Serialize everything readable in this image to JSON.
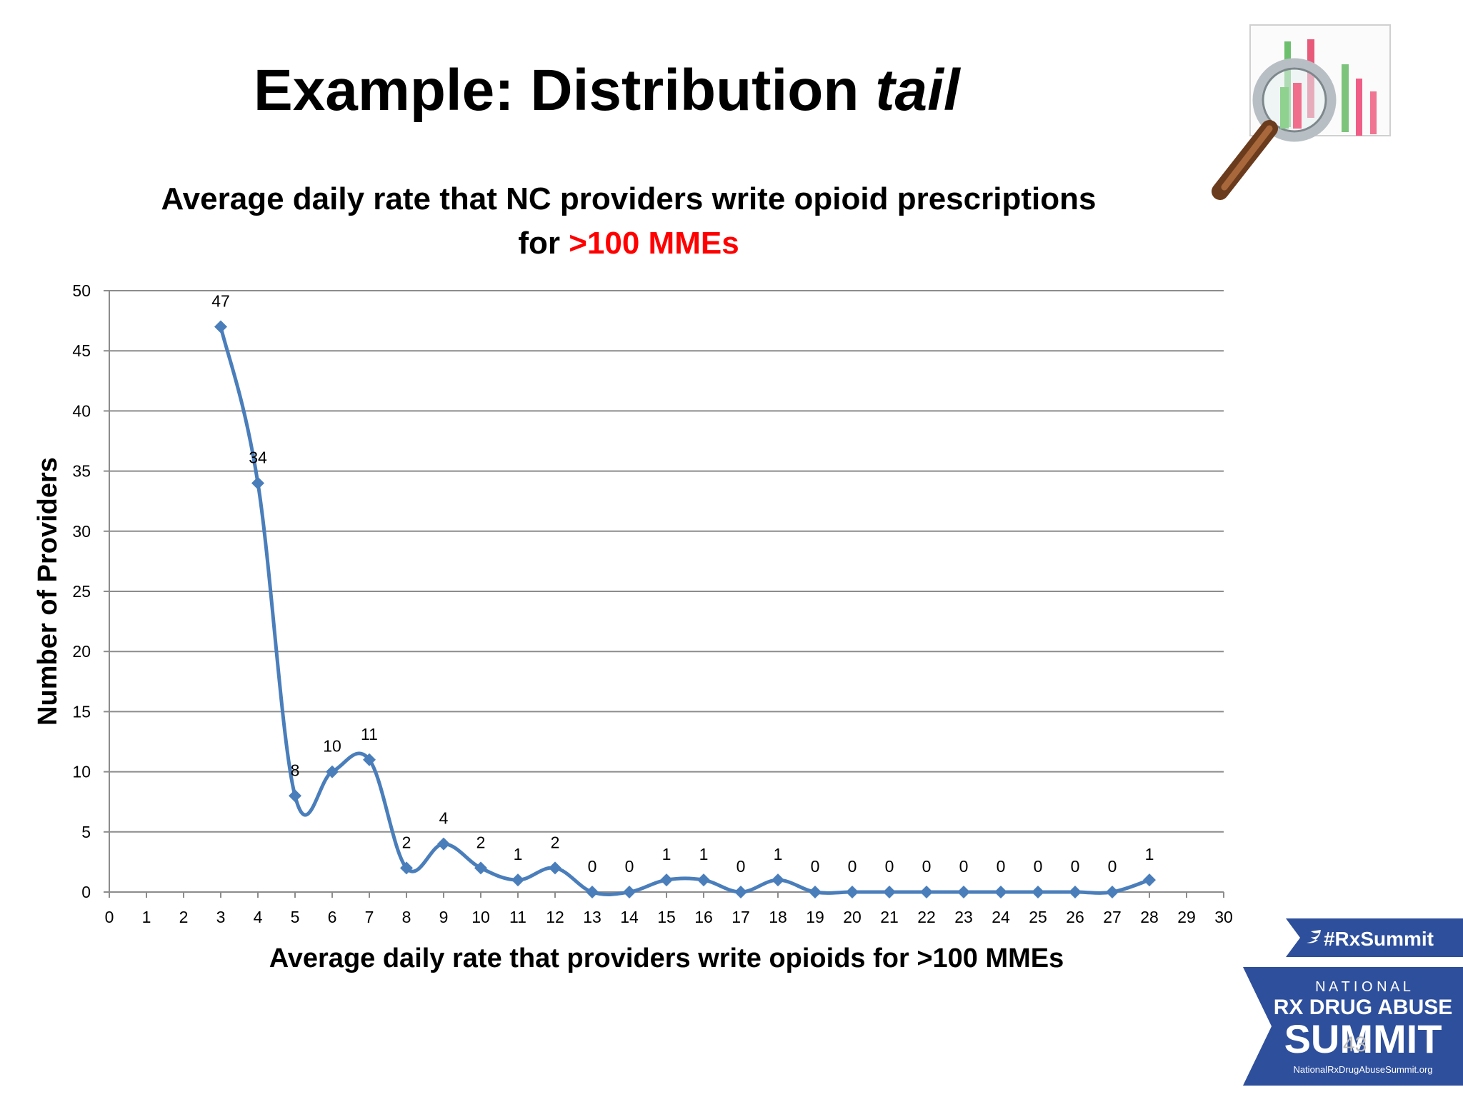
{
  "slide": {
    "title": "Example: Distribution",
    "title_emphasis": "tail",
    "page_number": "43"
  },
  "chart_data": {
    "type": "line",
    "title_line1": "Average daily rate that NC providers write opioid prescriptions",
    "title_line2_prefix": "for ",
    "title_line2_accent": ">100 MMEs",
    "xlabel": "Average daily rate that providers write opioids for >100 MMEs",
    "ylabel": "Number of Providers",
    "xlim": [
      0,
      30
    ],
    "ylim": [
      0,
      50
    ],
    "x_ticks": [
      0,
      1,
      2,
      3,
      4,
      5,
      6,
      7,
      8,
      9,
      10,
      11,
      12,
      13,
      14,
      15,
      16,
      17,
      18,
      19,
      20,
      21,
      22,
      23,
      24,
      25,
      26,
      27,
      28,
      29,
      30
    ],
    "y_ticks": [
      0,
      5,
      10,
      15,
      20,
      25,
      30,
      35,
      40,
      45,
      50
    ],
    "grid": true,
    "smoothed": true,
    "series": [
      {
        "x": [
          3,
          4,
          5,
          6,
          7,
          8,
          9,
          10,
          11,
          12,
          13,
          14,
          15,
          16,
          17,
          18,
          19,
          20,
          21,
          22,
          23,
          24,
          25,
          26,
          27,
          28
        ],
        "values": [
          47,
          34,
          8,
          10,
          11,
          2,
          4,
          2,
          1,
          2,
          0,
          0,
          1,
          1,
          0,
          1,
          0,
          0,
          0,
          0,
          0,
          0,
          0,
          0,
          0,
          1
        ],
        "color": "#4a7ebb"
      }
    ]
  },
  "badge": {
    "hashtag": "#RxSummit",
    "line1": "N A T I O N A L",
    "line2": "RX DRUG ABUSE",
    "line3": "SUMMIT",
    "url": "NationalRxDrugAbuseSummit.org",
    "color": "#2e4f9c"
  },
  "logo": {
    "icon": "magnifier-chart-icon"
  }
}
